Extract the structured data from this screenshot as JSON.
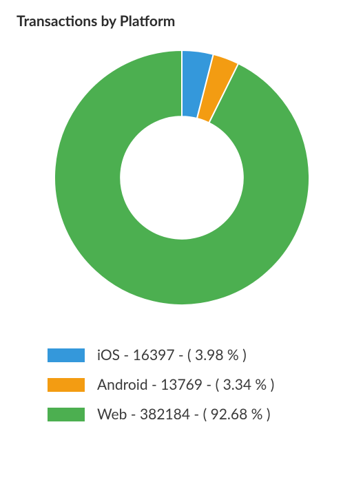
{
  "chart": {
    "title": "Transactions by Platform",
    "type": "donut",
    "inner_radius_ratio": 0.48,
    "outer_radius": 185,
    "start_angle_deg": -90,
    "background_color": "#ffffff",
    "text_color": "#2c2c2c",
    "title_fontsize": 21,
    "legend_fontsize": 21,
    "slices": [
      {
        "label": "iOS",
        "value": 16397,
        "percent": 3.98,
        "color": "#3498db"
      },
      {
        "label": "Android",
        "value": 13769,
        "percent": 3.34,
        "color": "#f39c12"
      },
      {
        "label": "Web",
        "value": 382184,
        "percent": 92.68,
        "color": "#4caf50"
      }
    ],
    "legend": {
      "swatch_width": 54,
      "swatch_height": 20,
      "item_spacing": 18
    }
  }
}
